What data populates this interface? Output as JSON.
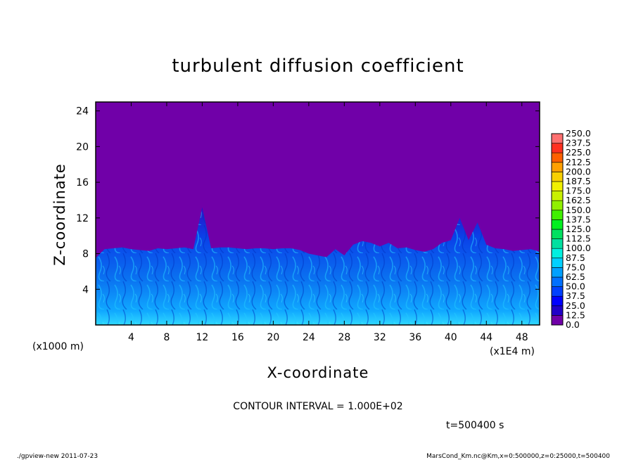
{
  "chart_data": {
    "type": "heatmap",
    "title": "turbulent diffusion coefficient",
    "xlabel": "X-coordinate",
    "ylabel": "Z-coordinate",
    "x_unit": "(x1E4 m)",
    "y_unit": "(x1000 m)",
    "xlim": [
      0,
      50
    ],
    "ylim": [
      0,
      25
    ],
    "x_ticks": [
      "4",
      "8",
      "12",
      "16",
      "20",
      "24",
      "28",
      "32",
      "36",
      "40",
      "44",
      "48"
    ],
    "y_ticks": [
      "4",
      "8",
      "12",
      "16",
      "20",
      "24"
    ],
    "contour_interval": "CONTOUR INTERVAL = 1.000E+02",
    "time_label": "t=500400 s",
    "colorbar_levels": [
      "0.0",
      "12.5",
      "25.0",
      "37.5",
      "50.0",
      "62.5",
      "75.0",
      "87.5",
      "100.0",
      "112.5",
      "125.0",
      "137.5",
      "150.0",
      "162.5",
      "175.0",
      "187.5",
      "200.0",
      "212.5",
      "225.0",
      "237.5",
      "250.0"
    ],
    "colorbar_colors": [
      "#7000a8",
      "#2000c8",
      "#0000ff",
      "#0040ff",
      "#0070ff",
      "#00a0ff",
      "#00d0ff",
      "#00f0e0",
      "#00e0a0",
      "#00e060",
      "#00f020",
      "#40f000",
      "#90f000",
      "#c8f000",
      "#f0f000",
      "#f8d000",
      "#ffa000",
      "#ff6000",
      "#ff3020",
      "#ff7070"
    ],
    "background_value": "0.0",
    "turbulent_layer_top_km": [
      7.5,
      8.5,
      8.6,
      8.7,
      8.5,
      8.4,
      8.3,
      8.6,
      8.5,
      8.6,
      8.7,
      8.5,
      13.2,
      8.6,
      8.7,
      8.7,
      8.6,
      8.5,
      8.6,
      8.6,
      8.5,
      8.6,
      8.6,
      8.4,
      8.0,
      7.8,
      7.6,
      8.5,
      7.8,
      9.0,
      9.4,
      9.2,
      8.8,
      9.2,
      8.6,
      8.7,
      8.4,
      8.2,
      8.5,
      9.2,
      9.5,
      12.0,
      9.5,
      11.5,
      9.0,
      8.6,
      8.5,
      8.3,
      8.4,
      8.5,
      8.2
    ]
  },
  "footer": {
    "left": "./gpview-new   2011-07-23",
    "right": "MarsCond_Km.nc@Km,x=0:500000,z=0:25000,t=500400"
  }
}
